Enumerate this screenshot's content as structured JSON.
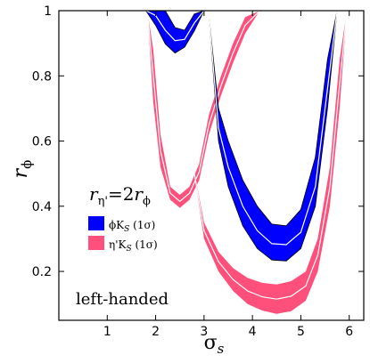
{
  "chart_data": {
    "type": "area",
    "xlabel": "σ",
    "xlabel_sub": "s",
    "ylabel": "r",
    "ylabel_sub": "ϕ",
    "xlim": [
      0,
      6.3
    ],
    "ylim": [
      0.05,
      1.0
    ],
    "xticks": [
      1,
      2,
      3,
      4,
      5,
      6
    ],
    "yticks": [
      0.2,
      0.4,
      0.6,
      0.8,
      1
    ],
    "grid": false,
    "relation": {
      "prefix": "r",
      "prefix_sub": "η'",
      "equals": "=2",
      "suffix": "r",
      "suffix_sub": "ϕ"
    },
    "annotation": "left-handed",
    "legend_position": "center-left",
    "series": [
      {
        "name": "ϕK",
        "name_sub": "S",
        "name_suffix": " (1σ)",
        "color": "#0000ff",
        "segments": [
          {
            "x": [
              1.8,
              2.0,
              2.2,
              2.4,
              2.6,
              2.8,
              3.0,
              3.05
            ],
            "lower": [
              1.0,
              0.955,
              0.898,
              0.87,
              0.888,
              0.938,
              1.0,
              1.0
            ],
            "upper": [
              1.0,
              1.0,
              1.0,
              0.948,
              0.94,
              0.99,
              1.0,
              1.0
            ],
            "central": [
              1.0,
              0.985,
              0.94,
              0.908,
              0.912,
              0.962,
              1.0,
              1.0
            ]
          },
          {
            "x": [
              3.1,
              3.3,
              3.5,
              3.8,
              4.1,
              4.4,
              4.7,
              5.0,
              5.3,
              5.55,
              5.75
            ],
            "lower": [
              0.985,
              0.6,
              0.46,
              0.34,
              0.27,
              0.235,
              0.232,
              0.27,
              0.4,
              0.7,
              1.0
            ],
            "upper": [
              0.985,
              0.7,
              0.6,
              0.48,
              0.4,
              0.345,
              0.34,
              0.39,
              0.55,
              0.85,
              1.0
            ],
            "central": [
              0.985,
              0.64,
              0.52,
              0.4,
              0.325,
              0.285,
              0.282,
              0.32,
              0.46,
              0.76,
              1.0
            ]
          }
        ]
      },
      {
        "name": "η'K",
        "name_sub": "S",
        "name_suffix": " (1σ)",
        "color": "#ff4f7b",
        "segments": [
          {
            "x": [
              1.83,
              1.95,
              2.1,
              2.3,
              2.5,
              2.7,
              2.9,
              3.1,
              3.35,
              3.6,
              3.85,
              4.15
            ],
            "lower": [
              1.0,
              0.72,
              0.52,
              0.42,
              0.395,
              0.42,
              0.48,
              0.62,
              0.74,
              0.84,
              0.93,
              1.0
            ],
            "upper": [
              1.0,
              0.88,
              0.62,
              0.46,
              0.435,
              0.46,
              0.53,
              0.68,
              0.8,
              0.9,
              0.98,
              1.0
            ],
            "central": [
              1.0,
              0.8,
              0.57,
              0.44,
              0.415,
              0.44,
              0.505,
              0.65,
              0.77,
              0.87,
              0.955,
              1.0
            ]
          },
          {
            "x": [
              2.75,
              3.0,
              3.3,
              3.6,
              3.9,
              4.2,
              4.5,
              4.8,
              5.1,
              5.35,
              5.6,
              5.8,
              5.95
            ],
            "lower": [
              0.545,
              0.3,
              0.2,
              0.14,
              0.1,
              0.08,
              0.07,
              0.078,
              0.11,
              0.2,
              0.4,
              0.7,
              1.0
            ],
            "upper": [
              0.545,
              0.35,
              0.26,
              0.21,
              0.18,
              0.165,
              0.16,
              0.17,
              0.2,
              0.3,
              0.52,
              0.85,
              1.0
            ],
            "central": [
              0.545,
              0.325,
              0.23,
              0.175,
              0.14,
              0.122,
              0.115,
              0.124,
              0.155,
              0.25,
              0.46,
              0.775,
              1.0
            ]
          }
        ]
      }
    ],
    "overlap_color": "#a0008a"
  }
}
